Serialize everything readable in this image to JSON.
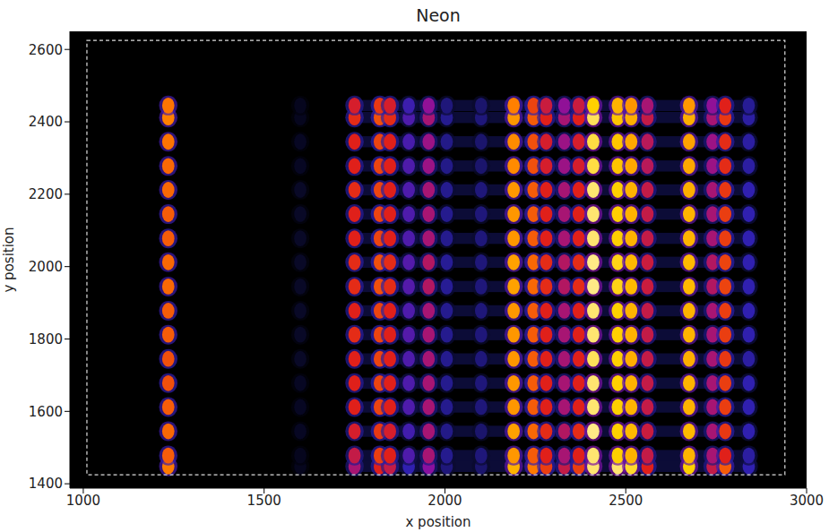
{
  "chart_data": {
    "type": "heatmap",
    "title": "Neon",
    "x_label": "x position",
    "y_label": "y position",
    "xlim": [
      963,
      3000
    ],
    "ylim": [
      1388,
      2650
    ],
    "xticks": [
      1000,
      1500,
      2000,
      2500,
      3000
    ],
    "yticks": [
      1400,
      1600,
      1800,
      2000,
      2200,
      2400,
      2600
    ],
    "color_range": [
      0,
      1
    ],
    "box": {
      "x": [
        1010,
        2940
      ],
      "y": [
        1425,
        2625
      ]
    },
    "cell_width": 34,
    "cell_height": 44,
    "haze": {
      "x": [
        1740,
        2860
      ],
      "level": 0.14
    },
    "x": [
      1235,
      1600,
      1750,
      1820,
      1848,
      1900,
      1955,
      2005,
      2100,
      2190,
      2245,
      2280,
      2330,
      2370,
      2410,
      2478,
      2515,
      2560,
      2675,
      2740,
      2775,
      2840
    ],
    "y": [
      1448,
      1478,
      1545,
      1612,
      1678,
      1745,
      1812,
      1878,
      1945,
      2012,
      2078,
      2145,
      2212,
      2278,
      2345,
      2412,
      2445
    ],
    "cells": [
      [
        0.75,
        0.06,
        0.5,
        0.6,
        0.55,
        0.3,
        0.45,
        0.22,
        0.2,
        0.85,
        0.75,
        0.65,
        0.55,
        0.65,
        0.95,
        0.95,
        0.92,
        0.6,
        0.9,
        0.55,
        0.7,
        0.3
      ],
      [
        0.7,
        0.06,
        0.55,
        0.65,
        0.6,
        0.35,
        0.5,
        0.25,
        0.22,
        0.8,
        0.7,
        0.6,
        0.5,
        0.6,
        0.95,
        0.9,
        0.85,
        0.55,
        0.85,
        0.5,
        0.6,
        0.28
      ],
      [
        0.72,
        0.07,
        0.58,
        0.64,
        0.58,
        0.33,
        0.5,
        0.24,
        0.2,
        0.82,
        0.72,
        0.62,
        0.52,
        0.62,
        0.96,
        0.9,
        0.86,
        0.56,
        0.86,
        0.5,
        0.64,
        0.3
      ],
      [
        0.7,
        0.07,
        0.6,
        0.66,
        0.6,
        0.35,
        0.5,
        0.25,
        0.22,
        0.8,
        0.7,
        0.6,
        0.5,
        0.6,
        0.95,
        0.9,
        0.85,
        0.55,
        0.85,
        0.5,
        0.65,
        0.3
      ],
      [
        0.68,
        0.07,
        0.6,
        0.66,
        0.6,
        0.35,
        0.5,
        0.25,
        0.22,
        0.8,
        0.7,
        0.6,
        0.5,
        0.6,
        0.95,
        0.9,
        0.85,
        0.55,
        0.85,
        0.5,
        0.65,
        0.3
      ],
      [
        0.68,
        0.08,
        0.6,
        0.66,
        0.6,
        0.35,
        0.5,
        0.25,
        0.22,
        0.8,
        0.7,
        0.6,
        0.5,
        0.6,
        0.94,
        0.9,
        0.84,
        0.55,
        0.84,
        0.5,
        0.64,
        0.28
      ],
      [
        0.7,
        0.08,
        0.62,
        0.66,
        0.6,
        0.36,
        0.5,
        0.25,
        0.22,
        0.8,
        0.7,
        0.6,
        0.5,
        0.6,
        0.95,
        0.9,
        0.85,
        0.55,
        0.85,
        0.5,
        0.65,
        0.3
      ],
      [
        0.7,
        0.08,
        0.6,
        0.66,
        0.6,
        0.35,
        0.5,
        0.25,
        0.22,
        0.8,
        0.7,
        0.6,
        0.5,
        0.6,
        0.95,
        0.9,
        0.85,
        0.55,
        0.85,
        0.5,
        0.65,
        0.3
      ],
      [
        0.72,
        0.08,
        0.62,
        0.68,
        0.62,
        0.36,
        0.52,
        0.26,
        0.22,
        0.82,
        0.72,
        0.62,
        0.52,
        0.62,
        0.96,
        0.91,
        0.86,
        0.56,
        0.86,
        0.52,
        0.66,
        0.3
      ],
      [
        0.72,
        0.08,
        0.62,
        0.68,
        0.62,
        0.36,
        0.52,
        0.26,
        0.22,
        0.82,
        0.72,
        0.62,
        0.52,
        0.62,
        0.96,
        0.91,
        0.86,
        0.56,
        0.86,
        0.52,
        0.66,
        0.3
      ],
      [
        0.7,
        0.08,
        0.6,
        0.66,
        0.6,
        0.35,
        0.5,
        0.25,
        0.22,
        0.8,
        0.7,
        0.6,
        0.5,
        0.6,
        0.95,
        0.9,
        0.85,
        0.55,
        0.85,
        0.5,
        0.65,
        0.3
      ],
      [
        0.7,
        0.08,
        0.6,
        0.66,
        0.6,
        0.35,
        0.5,
        0.25,
        0.22,
        0.8,
        0.7,
        0.6,
        0.5,
        0.6,
        0.95,
        0.9,
        0.85,
        0.55,
        0.85,
        0.5,
        0.65,
        0.3
      ],
      [
        0.72,
        0.08,
        0.62,
        0.66,
        0.6,
        0.35,
        0.5,
        0.25,
        0.22,
        0.8,
        0.7,
        0.6,
        0.5,
        0.6,
        0.95,
        0.9,
        0.85,
        0.55,
        0.84,
        0.5,
        0.64,
        0.3
      ],
      [
        0.72,
        0.07,
        0.6,
        0.66,
        0.6,
        0.35,
        0.48,
        0.24,
        0.2,
        0.78,
        0.68,
        0.58,
        0.48,
        0.58,
        0.93,
        0.88,
        0.83,
        0.53,
        0.83,
        0.48,
        0.62,
        0.28
      ],
      [
        0.74,
        0.07,
        0.6,
        0.66,
        0.6,
        0.34,
        0.48,
        0.24,
        0.2,
        0.78,
        0.68,
        0.58,
        0.48,
        0.58,
        0.93,
        0.88,
        0.83,
        0.53,
        0.82,
        0.48,
        0.62,
        0.28
      ],
      [
        0.76,
        0.06,
        0.62,
        0.68,
        0.62,
        0.35,
        0.5,
        0.25,
        0.22,
        0.8,
        0.7,
        0.6,
        0.5,
        0.6,
        0.94,
        0.88,
        0.84,
        0.55,
        0.84,
        0.5,
        0.64,
        0.28
      ],
      [
        0.74,
        0.06,
        0.58,
        0.64,
        0.58,
        0.32,
        0.46,
        0.22,
        0.2,
        0.76,
        0.66,
        0.56,
        0.46,
        0.56,
        0.9,
        0.85,
        0.8,
        0.5,
        0.8,
        0.46,
        0.6,
        0.26
      ]
    ]
  }
}
